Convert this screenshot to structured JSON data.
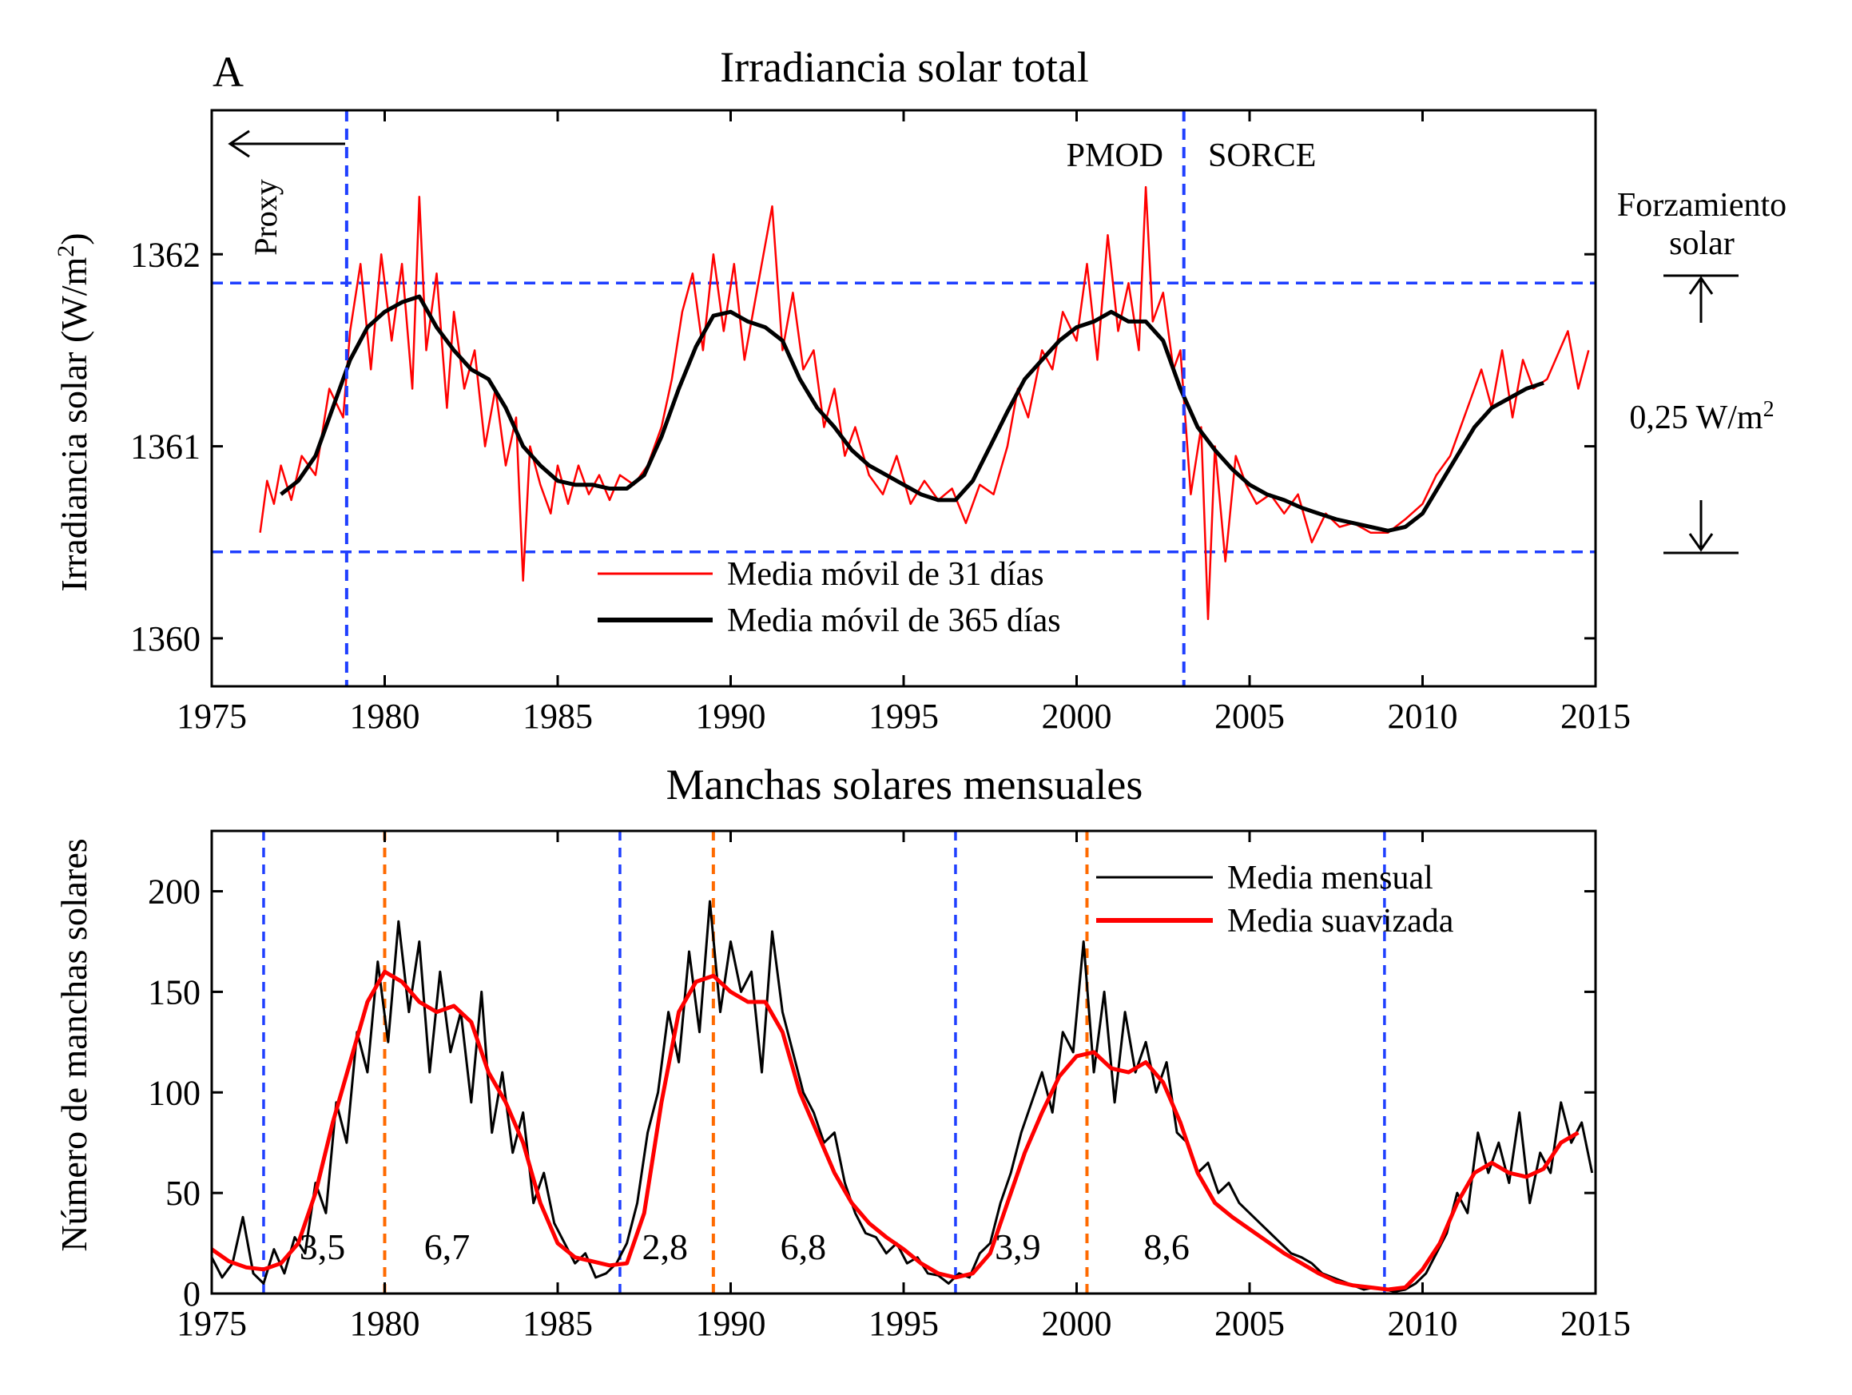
{
  "colors": {
    "tsi_31": "#ff0000",
    "tsi_365": "#000000",
    "ss_monthly": "#000000",
    "ss_smoothed": "#ff0000",
    "minima_lines": "#1f3fff",
    "maxima_lines": "#ff6a00",
    "reference_lines": "#1f3fff"
  },
  "chart_data": [
    {
      "type": "line",
      "panel_label": "A",
      "title": "Irradiancia solar total",
      "ylabel": "Irradiancia solar (W/m²)",
      "xlim": [
        1975,
        2015
      ],
      "ylim": [
        1359.75,
        1362.75
      ],
      "xticks": [
        1975,
        1980,
        1985,
        1990,
        1995,
        2000,
        2005,
        2010,
        2015
      ],
      "yticks": [
        1360,
        1361,
        1362
      ],
      "legend": {
        "position": "bottom-center",
        "entries": [
          "Media móvil de 31 días",
          "Media móvil de 365 días"
        ]
      },
      "annotations": {
        "proxy": "Proxy",
        "pmod": "PMOD",
        "sorce": "SORCE",
        "forcing_title_1": "Forzamiento",
        "forcing_title_2": "solar",
        "forcing_value": "0,25 W/m²"
      },
      "vertical_lines_x": [
        1978.9,
        2003.1
      ],
      "horizontal_lines_y": [
        1361.85,
        1360.45
      ],
      "series": [
        {
          "name": "Media móvil de 31 días",
          "x": [
            1976.4,
            1976.6,
            1976.8,
            1977.0,
            1977.3,
            1977.6,
            1978.0,
            1978.4,
            1978.8,
            1979.0,
            1979.3,
            1979.6,
            1979.9,
            1980.2,
            1980.5,
            1980.8,
            1981.0,
            1981.2,
            1981.5,
            1981.8,
            1982.0,
            1982.3,
            1982.6,
            1982.9,
            1983.2,
            1983.5,
            1983.8,
            1984.0,
            1984.2,
            1984.5,
            1984.8,
            1985.0,
            1985.3,
            1985.6,
            1985.9,
            1986.2,
            1986.5,
            1986.8,
            1987.2,
            1987.6,
            1988.0,
            1988.3,
            1988.6,
            1988.9,
            1989.2,
            1989.5,
            1989.8,
            1990.1,
            1990.4,
            1990.8,
            1991.2,
            1991.5,
            1991.8,
            1992.1,
            1992.4,
            1992.7,
            1993.0,
            1993.3,
            1993.6,
            1994.0,
            1994.4,
            1994.8,
            1995.2,
            1995.6,
            1996.0,
            1996.4,
            1996.8,
            1997.2,
            1997.6,
            1998.0,
            1998.3,
            1998.6,
            1999.0,
            1999.3,
            1999.6,
            2000.0,
            2000.3,
            2000.6,
            2000.9,
            2001.2,
            2001.5,
            2001.8,
            2002.0,
            2002.2,
            2002.5,
            2002.8,
            2003.0,
            2003.3,
            2003.6,
            2003.8,
            2004.0,
            2004.3,
            2004.6,
            2004.9,
            2005.2,
            2005.6,
            2006.0,
            2006.4,
            2006.8,
            2007.2,
            2007.6,
            2008.0,
            2008.5,
            2009.0,
            2009.5,
            2010.0,
            2010.4,
            2010.8,
            2011.1,
            2011.4,
            2011.7,
            2012.0,
            2012.3,
            2012.6,
            2012.9,
            2013.2,
            2013.6,
            2014.2,
            2014.5,
            2014.8
          ],
          "y": [
            1360.55,
            1360.82,
            1360.7,
            1360.9,
            1360.72,
            1360.95,
            1360.85,
            1361.3,
            1361.15,
            1361.6,
            1361.95,
            1361.4,
            1362.0,
            1361.55,
            1361.95,
            1361.3,
            1362.3,
            1361.5,
            1361.9,
            1361.2,
            1361.7,
            1361.3,
            1361.5,
            1361.0,
            1361.3,
            1360.9,
            1361.15,
            1360.3,
            1361.0,
            1360.8,
            1360.65,
            1360.9,
            1360.7,
            1360.9,
            1360.75,
            1360.85,
            1360.72,
            1360.85,
            1360.8,
            1360.9,
            1361.1,
            1361.35,
            1361.7,
            1361.9,
            1361.5,
            1362.0,
            1361.6,
            1361.95,
            1361.45,
            1361.85,
            1362.25,
            1361.5,
            1361.8,
            1361.4,
            1361.5,
            1361.1,
            1361.3,
            1360.95,
            1361.1,
            1360.85,
            1360.75,
            1360.95,
            1360.7,
            1360.82,
            1360.72,
            1360.78,
            1360.6,
            1360.8,
            1360.75,
            1361.0,
            1361.3,
            1361.15,
            1361.5,
            1361.4,
            1361.7,
            1361.55,
            1361.95,
            1361.45,
            1362.1,
            1361.6,
            1361.85,
            1361.5,
            1362.35,
            1361.65,
            1361.8,
            1361.4,
            1361.5,
            1360.75,
            1361.1,
            1360.1,
            1361.0,
            1360.4,
            1360.95,
            1360.8,
            1360.7,
            1360.75,
            1360.65,
            1360.75,
            1360.5,
            1360.65,
            1360.58,
            1360.6,
            1360.55,
            1360.55,
            1360.62,
            1360.7,
            1360.85,
            1360.95,
            1361.1,
            1361.25,
            1361.4,
            1361.2,
            1361.5,
            1361.15,
            1361.45,
            1361.3,
            1361.35,
            1361.6,
            1361.3,
            1361.5
          ]
        },
        {
          "name": "Media móvil de 365 días",
          "x": [
            1977.0,
            1977.5,
            1978.0,
            1978.5,
            1979.0,
            1979.5,
            1980.0,
            1980.5,
            1981.0,
            1981.5,
            1982.0,
            1982.5,
            1983.0,
            1983.5,
            1984.0,
            1984.5,
            1985.0,
            1985.5,
            1986.0,
            1986.5,
            1987.0,
            1987.5,
            1988.0,
            1988.5,
            1989.0,
            1989.5,
            1990.0,
            1990.5,
            1991.0,
            1991.5,
            1992.0,
            1992.5,
            1993.0,
            1993.5,
            1994.0,
            1994.5,
            1995.0,
            1995.5,
            1996.0,
            1996.5,
            1997.0,
            1997.5,
            1998.0,
            1998.5,
            1999.0,
            1999.5,
            2000.0,
            2000.5,
            2001.0,
            2001.5,
            2002.0,
            2002.5,
            2003.0,
            2003.5,
            2004.0,
            2004.5,
            2005.0,
            2005.5,
            2006.0,
            2006.5,
            2007.0,
            2007.5,
            2008.0,
            2008.5,
            2009.0,
            2009.5,
            2010.0,
            2010.5,
            2011.0,
            2011.5,
            2012.0,
            2012.5,
            2013.0,
            2013.5
          ],
          "y": [
            1360.75,
            1360.82,
            1360.95,
            1361.2,
            1361.45,
            1361.62,
            1361.7,
            1361.75,
            1361.78,
            1361.62,
            1361.5,
            1361.4,
            1361.35,
            1361.2,
            1361.0,
            1360.9,
            1360.82,
            1360.8,
            1360.8,
            1360.78,
            1360.78,
            1360.85,
            1361.05,
            1361.3,
            1361.52,
            1361.68,
            1361.7,
            1361.65,
            1361.62,
            1361.55,
            1361.35,
            1361.2,
            1361.1,
            1360.98,
            1360.9,
            1360.85,
            1360.8,
            1360.75,
            1360.72,
            1360.72,
            1360.82,
            1361.0,
            1361.18,
            1361.35,
            1361.45,
            1361.55,
            1361.62,
            1361.65,
            1361.7,
            1361.65,
            1361.65,
            1361.55,
            1361.3,
            1361.1,
            1360.98,
            1360.88,
            1360.8,
            1360.75,
            1360.72,
            1360.68,
            1360.65,
            1360.62,
            1360.6,
            1360.58,
            1360.56,
            1360.58,
            1360.65,
            1360.8,
            1360.95,
            1361.1,
            1361.2,
            1361.25,
            1361.3,
            1361.33
          ]
        }
      ]
    },
    {
      "type": "line",
      "title": "Manchas solares mensuales",
      "ylabel": "Número de manchas solares",
      "xlim": [
        1975,
        2015
      ],
      "ylim": [
        0,
        230
      ],
      "xticks": [
        1975,
        1980,
        1985,
        1990,
        1995,
        2000,
        2005,
        2010,
        2015
      ],
      "yticks": [
        0,
        50,
        100,
        150,
        200
      ],
      "legend": {
        "position": "top-right",
        "entries": [
          "Media mensual",
          "Media suavizada"
        ]
      },
      "minima_x": [
        1976.5,
        1986.8,
        1996.5,
        2008.9
      ],
      "maxima_x": [
        1980.0,
        1989.5,
        2000.3
      ],
      "cycle_labels": [
        {
          "text": "3,5",
          "x": 1978.2,
          "y": 17
        },
        {
          "text": "6,7",
          "x": 1981.8,
          "y": 17
        },
        {
          "text": "2,8",
          "x": 1988.1,
          "y": 17
        },
        {
          "text": "6,8",
          "x": 1992.1,
          "y": 17
        },
        {
          "text": "3,9",
          "x": 1998.3,
          "y": 17
        },
        {
          "text": "8,6",
          "x": 2002.6,
          "y": 17
        }
      ],
      "series": [
        {
          "name": "Media mensual",
          "x": [
            1975.0,
            1975.3,
            1975.6,
            1975.9,
            1976.2,
            1976.5,
            1976.8,
            1977.1,
            1977.4,
            1977.7,
            1978.0,
            1978.3,
            1978.6,
            1978.9,
            1979.2,
            1979.5,
            1979.8,
            1980.1,
            1980.4,
            1980.7,
            1981.0,
            1981.3,
            1981.6,
            1981.9,
            1982.2,
            1982.5,
            1982.8,
            1983.1,
            1983.4,
            1983.7,
            1984.0,
            1984.3,
            1984.6,
            1984.9,
            1985.2,
            1985.5,
            1985.8,
            1986.1,
            1986.4,
            1986.7,
            1987.0,
            1987.3,
            1987.6,
            1987.9,
            1988.2,
            1988.5,
            1988.8,
            1989.1,
            1989.4,
            1989.7,
            1990.0,
            1990.3,
            1990.6,
            1990.9,
            1991.2,
            1991.5,
            1991.8,
            1992.1,
            1992.4,
            1992.7,
            1993.0,
            1993.3,
            1993.6,
            1993.9,
            1994.2,
            1994.5,
            1994.8,
            1995.1,
            1995.4,
            1995.7,
            1996.0,
            1996.3,
            1996.6,
            1996.9,
            1997.2,
            1997.5,
            1997.8,
            1998.1,
            1998.4,
            1998.7,
            1999.0,
            1999.3,
            1999.6,
            1999.9,
            2000.2,
            2000.5,
            2000.8,
            2001.1,
            2001.4,
            2001.7,
            2002.0,
            2002.3,
            2002.6,
            2002.9,
            2003.2,
            2003.5,
            2003.8,
            2004.1,
            2004.4,
            2004.7,
            2005.0,
            2005.3,
            2005.6,
            2005.9,
            2006.2,
            2006.5,
            2006.8,
            2007.1,
            2007.4,
            2007.7,
            2008.0,
            2008.3,
            2008.6,
            2008.9,
            2009.2,
            2009.5,
            2009.8,
            2010.1,
            2010.4,
            2010.7,
            2011.0,
            2011.3,
            2011.6,
            2011.9,
            2012.2,
            2012.5,
            2012.8,
            2013.1,
            2013.4,
            2013.7,
            2014.0,
            2014.3,
            2014.6,
            2014.9
          ],
          "y": [
            18,
            8,
            15,
            38,
            10,
            5,
            22,
            10,
            28,
            20,
            55,
            40,
            95,
            75,
            130,
            110,
            165,
            125,
            185,
            140,
            175,
            110,
            160,
            120,
            140,
            95,
            150,
            80,
            110,
            70,
            90,
            45,
            60,
            35,
            25,
            15,
            20,
            8,
            10,
            15,
            25,
            45,
            80,
            100,
            140,
            115,
            170,
            130,
            195,
            140,
            175,
            150,
            160,
            110,
            180,
            140,
            120,
            100,
            90,
            75,
            80,
            55,
            40,
            30,
            28,
            20,
            25,
            15,
            18,
            10,
            9,
            5,
            10,
            8,
            20,
            25,
            45,
            60,
            80,
            95,
            110,
            90,
            130,
            120,
            175,
            110,
            150,
            95,
            140,
            110,
            125,
            100,
            115,
            80,
            75,
            60,
            65,
            50,
            55,
            45,
            40,
            35,
            30,
            25,
            20,
            18,
            15,
            10,
            8,
            6,
            4,
            2,
            3,
            2,
            1,
            2,
            5,
            10,
            20,
            30,
            50,
            40,
            80,
            60,
            75,
            55,
            90,
            45,
            70,
            60,
            95,
            75,
            85,
            60
          ]
        },
        {
          "name": "Media suavizada",
          "x": [
            1975.0,
            1975.5,
            1976.0,
            1976.5,
            1977.0,
            1977.5,
            1978.0,
            1978.5,
            1979.0,
            1979.5,
            1980.0,
            1980.5,
            1981.0,
            1981.5,
            1982.0,
            1982.5,
            1983.0,
            1983.5,
            1984.0,
            1984.5,
            1985.0,
            1985.5,
            1986.0,
            1986.5,
            1987.0,
            1987.5,
            1988.0,
            1988.5,
            1989.0,
            1989.5,
            1990.0,
            1990.5,
            1991.0,
            1991.5,
            1992.0,
            1992.5,
            1993.0,
            1993.5,
            1994.0,
            1994.5,
            1995.0,
            1995.5,
            1996.0,
            1996.5,
            1997.0,
            1997.5,
            1998.0,
            1998.5,
            1999.0,
            1999.5,
            2000.0,
            2000.5,
            2001.0,
            2001.5,
            2002.0,
            2002.5,
            2003.0,
            2003.5,
            2004.0,
            2004.5,
            2005.0,
            2005.5,
            2006.0,
            2006.5,
            2007.0,
            2007.5,
            2008.0,
            2008.5,
            2009.0,
            2009.5,
            2010.0,
            2010.5,
            2011.0,
            2011.5,
            2012.0,
            2012.5,
            2013.0,
            2013.5,
            2014.0,
            2014.5
          ],
          "y": [
            22,
            16,
            13,
            12,
            15,
            25,
            50,
            85,
            115,
            145,
            160,
            155,
            145,
            140,
            143,
            135,
            110,
            95,
            75,
            45,
            25,
            18,
            16,
            14,
            15,
            40,
            95,
            140,
            155,
            158,
            150,
            145,
            145,
            130,
            100,
            80,
            60,
            45,
            35,
            28,
            22,
            15,
            10,
            8,
            10,
            20,
            45,
            70,
            90,
            108,
            118,
            120,
            112,
            110,
            115,
            105,
            85,
            60,
            45,
            38,
            32,
            26,
            20,
            15,
            10,
            6,
            4,
            3,
            2,
            3,
            12,
            25,
            45,
            60,
            65,
            60,
            58,
            62,
            75,
            80
          ]
        }
      ]
    }
  ]
}
